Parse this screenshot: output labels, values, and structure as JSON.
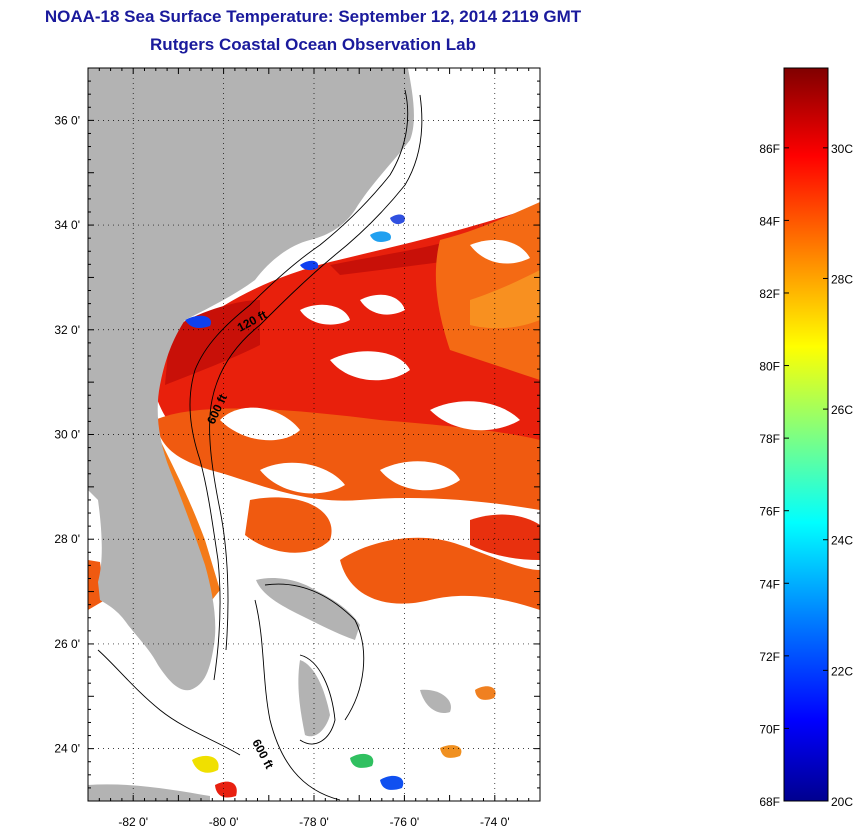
{
  "header": {
    "title": "NOAA-18 Sea Surface Temperature:  September 12, 2014 2119 GMT",
    "subtitle": "Rutgers Coastal Ocean Observation Lab"
  },
  "map": {
    "lat_range": [
      23.0,
      37.0
    ],
    "lon_range": [
      -83.0,
      -73.0
    ],
    "lat_ticks": [
      {
        "value": 24,
        "label": "24 0'"
      },
      {
        "value": 26,
        "label": "26 0'"
      },
      {
        "value": 28,
        "label": "28 0'"
      },
      {
        "value": 30,
        "label": "30 0'"
      },
      {
        "value": 32,
        "label": "32 0'"
      },
      {
        "value": 34,
        "label": "34 0'"
      },
      {
        "value": 36,
        "label": "36 0'"
      }
    ],
    "lon_ticks": [
      {
        "value": -82,
        "label": "-82 0'"
      },
      {
        "value": -80,
        "label": "-80 0'"
      },
      {
        "value": -78,
        "label": "-78 0'"
      },
      {
        "value": -76,
        "label": "-76 0'"
      },
      {
        "value": -74,
        "label": "-74 0'"
      }
    ],
    "contour_labels": [
      "120 ft",
      "600 ft",
      "600 ft"
    ],
    "land_color": "#b3b3b3",
    "cloud_color": "#ffffff"
  },
  "colorbar": {
    "min_f": 68,
    "max_f": 88.2,
    "fahrenheit_labels": [
      {
        "value": 68,
        "label": "68F"
      },
      {
        "value": 70,
        "label": "70F"
      },
      {
        "value": 72,
        "label": "72F"
      },
      {
        "value": 74,
        "label": "74F"
      },
      {
        "value": 76,
        "label": "76F"
      },
      {
        "value": 78,
        "label": "78F"
      },
      {
        "value": 80,
        "label": "80F"
      },
      {
        "value": 82,
        "label": "82F"
      },
      {
        "value": 84,
        "label": "84F"
      },
      {
        "value": 86,
        "label": "86F"
      }
    ],
    "celsius_labels": [
      {
        "value": 20,
        "label": "20C"
      },
      {
        "value": 22,
        "label": "22C"
      },
      {
        "value": 24,
        "label": "24C"
      },
      {
        "value": 26,
        "label": "26C"
      },
      {
        "value": 28,
        "label": "28C"
      },
      {
        "value": 30,
        "label": "30C"
      }
    ],
    "colormap": [
      "#00008f",
      "#0000ff",
      "#0080ff",
      "#00ffff",
      "#80ff80",
      "#ffff00",
      "#ff8000",
      "#ff0000",
      "#800000"
    ]
  }
}
